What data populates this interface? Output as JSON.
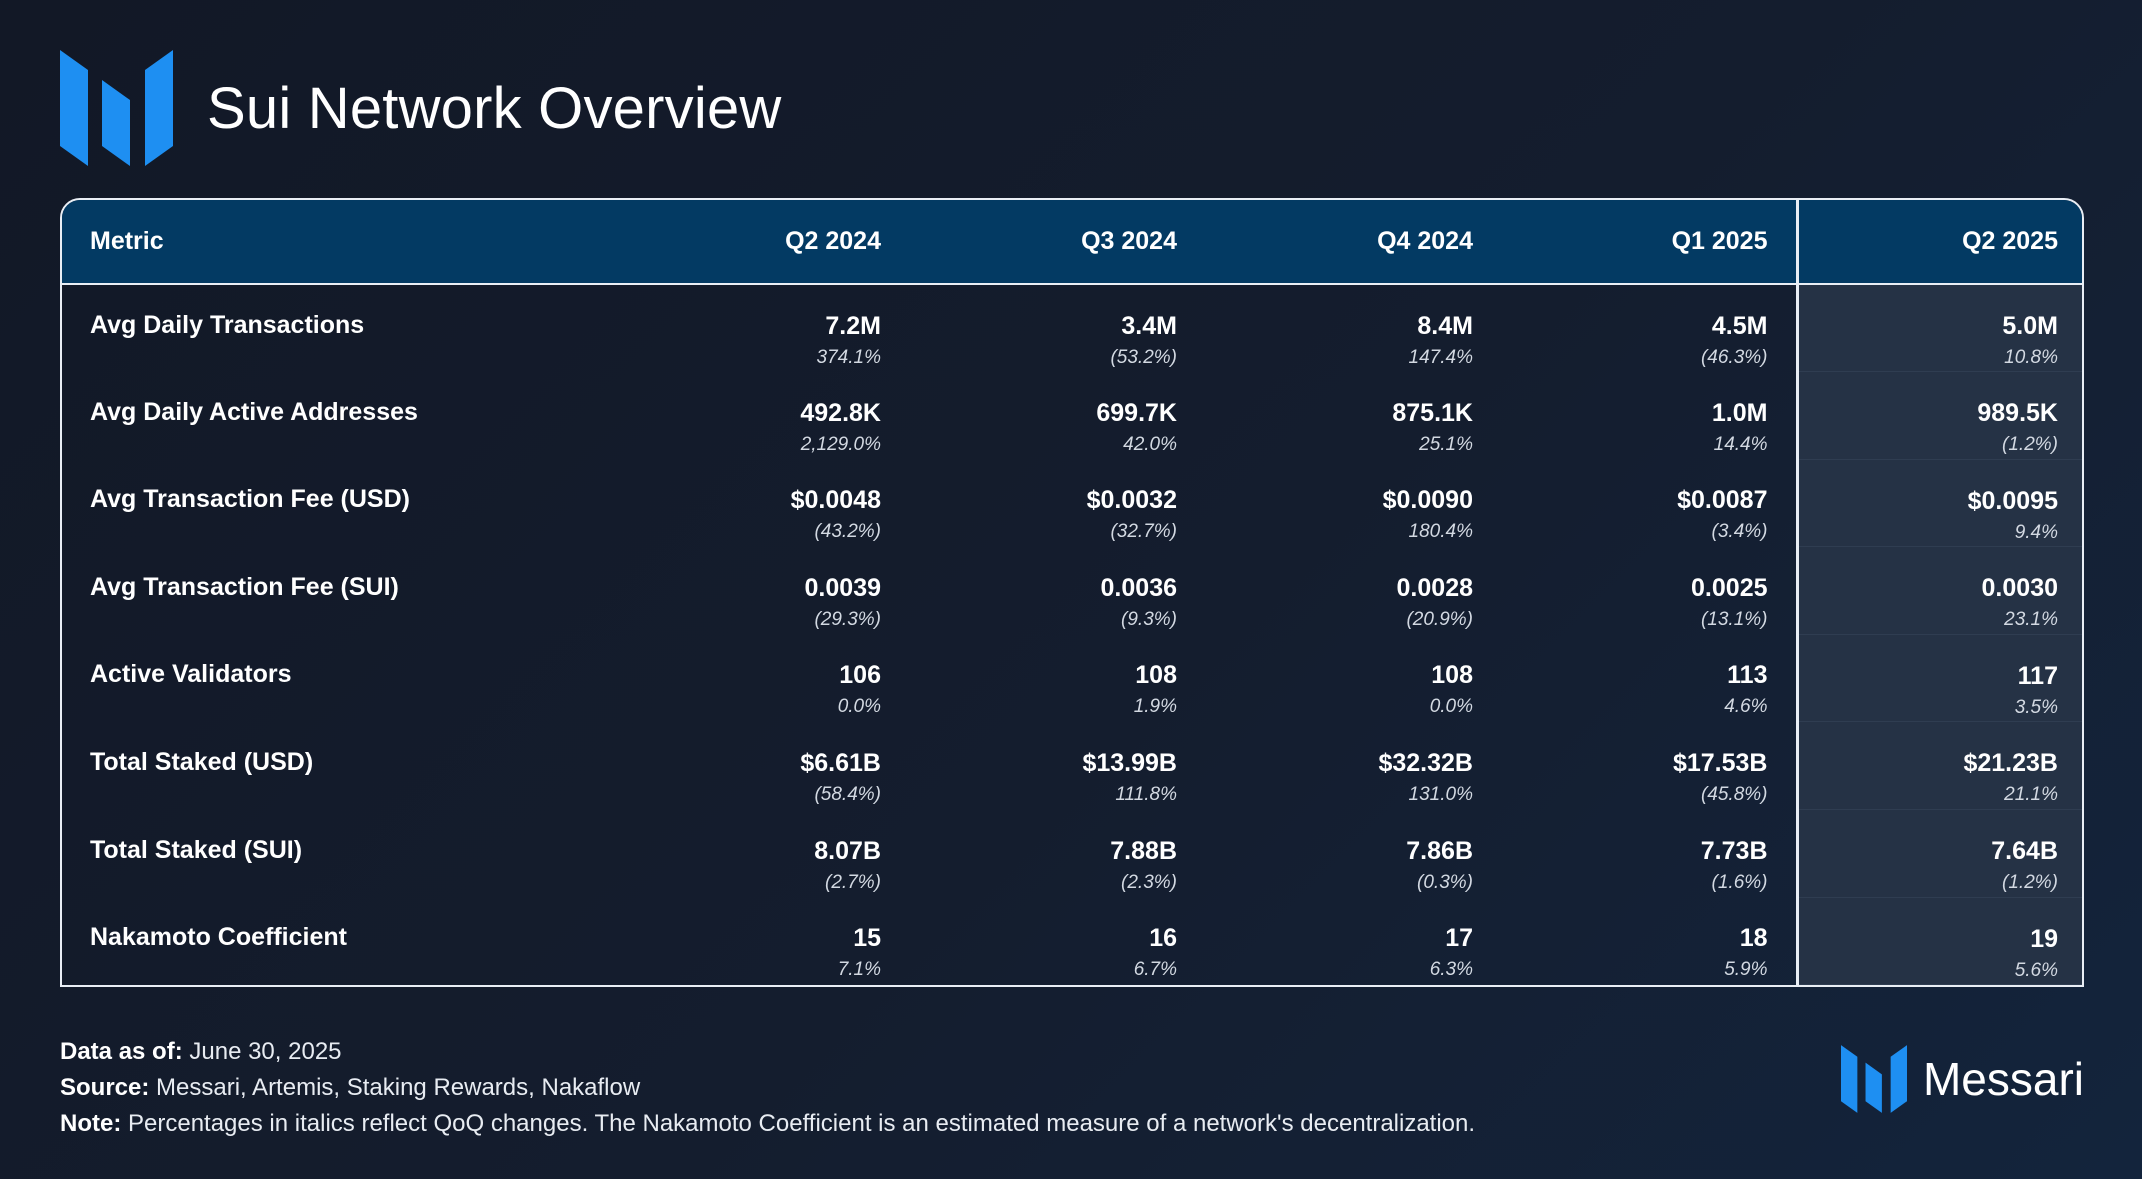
{
  "header": {
    "title": "Sui Network Overview"
  },
  "colors": {
    "brand_blue": "#1e8ff2",
    "header_bg": "#033a63",
    "highlight_bg": "#253245"
  },
  "table": {
    "columns": [
      "Metric",
      "Q2 2024",
      "Q3 2024",
      "Q4 2024",
      "Q1 2025",
      "Q2 2025"
    ],
    "rows": [
      {
        "metric": "Avg Daily Transactions",
        "cells": [
          {
            "v": "7.2M",
            "c": "374.1%"
          },
          {
            "v": "3.4M",
            "c": "(53.2%)"
          },
          {
            "v": "8.4M",
            "c": "147.4%"
          },
          {
            "v": "4.5M",
            "c": "(46.3%)"
          },
          {
            "v": "5.0M",
            "c": "10.8%"
          }
        ]
      },
      {
        "metric": "Avg Daily Active Addresses",
        "cells": [
          {
            "v": "492.8K",
            "c": "2,129.0%"
          },
          {
            "v": "699.7K",
            "c": "42.0%"
          },
          {
            "v": "875.1K",
            "c": "25.1%"
          },
          {
            "v": "1.0M",
            "c": "14.4%"
          },
          {
            "v": "989.5K",
            "c": "(1.2%)"
          }
        ]
      },
      {
        "metric": "Avg Transaction Fee (USD)",
        "cells": [
          {
            "v": "$0.0048",
            "c": "(43.2%)"
          },
          {
            "v": "$0.0032",
            "c": "(32.7%)"
          },
          {
            "v": "$0.0090",
            "c": "180.4%"
          },
          {
            "v": "$0.0087",
            "c": "(3.4%)"
          },
          {
            "v": "$0.0095",
            "c": "9.4%"
          }
        ]
      },
      {
        "metric": "Avg Transaction Fee (SUI)",
        "cells": [
          {
            "v": "0.0039",
            "c": "(29.3%)"
          },
          {
            "v": "0.0036",
            "c": "(9.3%)"
          },
          {
            "v": "0.0028",
            "c": "(20.9%)"
          },
          {
            "v": "0.0025",
            "c": "(13.1%)"
          },
          {
            "v": "0.0030",
            "c": "23.1%"
          }
        ]
      },
      {
        "metric": "Active Validators",
        "cells": [
          {
            "v": "106",
            "c": "0.0%"
          },
          {
            "v": "108",
            "c": "1.9%"
          },
          {
            "v": "108",
            "c": "0.0%"
          },
          {
            "v": "113",
            "c": "4.6%"
          },
          {
            "v": "117",
            "c": "3.5%"
          }
        ]
      },
      {
        "metric": "Total Staked (USD)",
        "cells": [
          {
            "v": "$6.61B",
            "c": "(58.4%)"
          },
          {
            "v": "$13.99B",
            "c": "111.8%"
          },
          {
            "v": "$32.32B",
            "c": "131.0%"
          },
          {
            "v": "$17.53B",
            "c": "(45.8%)"
          },
          {
            "v": "$21.23B",
            "c": "21.1%"
          }
        ]
      },
      {
        "metric": "Total Staked (SUI)",
        "cells": [
          {
            "v": "8.07B",
            "c": "(2.7%)"
          },
          {
            "v": "7.88B",
            "c": "(2.3%)"
          },
          {
            "v": "7.86B",
            "c": "(0.3%)"
          },
          {
            "v": "7.73B",
            "c": "(1.6%)"
          },
          {
            "v": "7.64B",
            "c": "(1.2%)"
          }
        ]
      },
      {
        "metric": "Nakamoto Coefficient",
        "cells": [
          {
            "v": "15",
            "c": "7.1%"
          },
          {
            "v": "16",
            "c": "6.7%"
          },
          {
            "v": "17",
            "c": "6.3%"
          },
          {
            "v": "18",
            "c": "5.9%"
          },
          {
            "v": "19",
            "c": "5.6%"
          }
        ]
      }
    ]
  },
  "chart_data": {
    "type": "table",
    "title": "Sui Network Overview",
    "columns": [
      "Metric",
      "Q2 2024",
      "Q3 2024",
      "Q4 2024",
      "Q1 2025",
      "Q2 2025"
    ],
    "highlighted_column": "Q2 2025"
  },
  "footer": {
    "data_as_of_label": "Data as of:",
    "data_as_of": "June 30, 2025",
    "source_label": "Source:",
    "source": "Messari, Artemis, Staking Rewards, Nakaflow",
    "note_label": "Note:",
    "note": "Percentages in italics reflect QoQ changes. The Nakamoto Coefficient is an estimated measure of a network's decentralization."
  },
  "brand": {
    "name": "Messari"
  }
}
